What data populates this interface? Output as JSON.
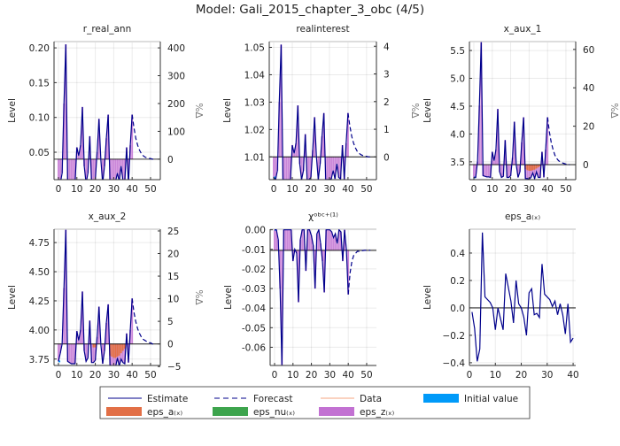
{
  "chart_data": {
    "type": "line",
    "title": "Model: Gali_2015_chapter_3_obc  (4/5)",
    "grid": true,
    "legend_placement": "bottom",
    "legend": [
      {
        "label": "Estimate",
        "kind": "line",
        "color": "#00008b"
      },
      {
        "label": "Forecast",
        "kind": "dash",
        "color": "#00008b"
      },
      {
        "label": "Data",
        "kind": "line",
        "color": "#f4a582"
      },
      {
        "label": "Initial value",
        "kind": "box",
        "color": "#009af9"
      },
      {
        "label": "eps_a₍ₓ₎",
        "kind": "box",
        "color": "#e26f46"
      },
      {
        "label": "eps_nu₍ₓ₎",
        "kind": "box",
        "color": "#3da44d"
      },
      {
        "label": "eps_z₍ₓ₎",
        "kind": "box",
        "color": "#c271d2"
      }
    ],
    "panels": [
      {
        "title": "r_real_ann",
        "ylabel": "Level",
        "y2label": "%Δ",
        "steady_state": 0.04,
        "ylim": [
          0.0106,
          0.209
        ],
        "xlim": [
          -2.4,
          55.3
        ],
        "xticks": [
          0,
          10,
          20,
          30,
          40,
          50
        ],
        "yticks": [
          0.05,
          0.1,
          0.15,
          0.2
        ],
        "ytick_labels": [
          "0.05",
          "0.10",
          "0.15",
          "0.20"
        ],
        "y2ticks": [
          0,
          100,
          200,
          300,
          400
        ],
        "estimate": [
          0.01,
          0.005,
          0.02,
          0.12,
          0.205,
          0.005,
          0.006,
          0.006,
          0.006,
          0.006,
          0.057,
          0.045,
          0.06,
          0.115,
          0.03,
          0.005,
          0.02,
          0.073,
          0.005,
          0.005,
          0.01,
          0.05,
          0.098,
          0.04,
          0.005,
          0.03,
          0.07,
          0.104,
          0.005,
          0.005,
          0.006,
          0.008,
          0.02,
          0.008,
          0.03,
          0.01,
          0.008,
          0.057,
          0.005,
          0.06,
          0.104
        ],
        "forecast": [
          0.104,
          0.085,
          0.07,
          0.06,
          0.053,
          0.048,
          0.045,
          0.043,
          0.042,
          0.041,
          0.041,
          0.04,
          0.04
        ],
        "eps_a": []
      },
      {
        "title": "realinterest",
        "ylabel": "Level",
        "y2label": "%Δ",
        "steady_state": 1.01,
        "ylim": [
          1.0017,
          1.0521
        ],
        "xlim": [
          -2.4,
          55.3
        ],
        "xticks": [
          0,
          10,
          20,
          30,
          40,
          50
        ],
        "yticks": [
          1.01,
          1.02,
          1.03,
          1.04,
          1.05
        ],
        "ytick_labels": [
          "1.01",
          "1.02",
          "1.03",
          "1.04",
          "1.05"
        ],
        "y2ticks": [
          0,
          1,
          2,
          3,
          4
        ],
        "estimate": [
          1.0025,
          1.0017,
          1.005,
          1.03,
          1.051,
          1.0017,
          1.0017,
          1.0017,
          1.0017,
          1.0017,
          1.0143,
          1.0113,
          1.015,
          1.0288,
          1.0075,
          1.0017,
          1.005,
          1.0183,
          1.0017,
          1.0017,
          1.0025,
          1.0125,
          1.0245,
          1.01,
          1.0017,
          1.0075,
          1.0175,
          1.026,
          1.0017,
          1.0017,
          1.0018,
          1.002,
          1.005,
          1.002,
          1.0075,
          1.0025,
          1.002,
          1.0143,
          1.0017,
          1.015,
          1.026
        ],
        "forecast": [
          1.026,
          1.0213,
          1.0175,
          1.015,
          1.0133,
          1.012,
          1.0113,
          1.0108,
          1.0105,
          1.0103,
          1.0102,
          1.01,
          1.01
        ],
        "eps_a": []
      },
      {
        "title": "x_aux_1",
        "ylabel": "Level",
        "y2label": "%Δ",
        "steady_state": 3.45,
        "ylim": [
          3.18,
          5.66
        ],
        "xlim": [
          -2.4,
          55.3
        ],
        "xticks": [
          0,
          10,
          20,
          30,
          40,
          50
        ],
        "yticks": [
          3.5,
          4.0,
          4.5,
          5.0,
          5.5
        ],
        "ytick_labels": [
          "3.5",
          "4.0",
          "4.5",
          "5.0",
          "5.5"
        ],
        "y2ticks": [
          0,
          20,
          40,
          60
        ],
        "estimate": [
          3.22,
          3.22,
          3.5,
          4.51,
          5.65,
          3.25,
          3.24,
          3.23,
          3.23,
          3.22,
          3.68,
          3.52,
          3.72,
          4.45,
          3.32,
          3.22,
          3.24,
          3.89,
          3.22,
          3.22,
          3.25,
          3.58,
          4.22,
          3.45,
          3.22,
          3.32,
          3.85,
          4.3,
          3.2,
          3.2,
          3.19,
          3.22,
          3.3,
          3.2,
          3.32,
          3.22,
          3.22,
          3.68,
          3.22,
          3.72,
          4.3
        ],
        "forecast": [
          4.3,
          4.04,
          3.85,
          3.72,
          3.62,
          3.56,
          3.52,
          3.5,
          3.48,
          3.47,
          3.46,
          3.45,
          3.45
        ],
        "eps_a": [
          [
            28,
            -0.08
          ],
          [
            29,
            -0.1
          ],
          [
            30,
            -0.11
          ],
          [
            31,
            -0.11
          ],
          [
            32,
            -0.1
          ],
          [
            33,
            -0.09
          ],
          [
            34,
            -0.07
          ],
          [
            35,
            -0.05
          ],
          [
            36,
            -0.03
          ]
        ]
      },
      {
        "title": "x_aux_2",
        "ylabel": "Level",
        "y2label": "%Δ",
        "steady_state": 3.88,
        "ylim": [
          3.695,
          4.865
        ],
        "xlim": [
          -2.4,
          55.3
        ],
        "xticks": [
          0,
          10,
          20,
          30,
          40,
          50
        ],
        "yticks": [
          3.75,
          4.0,
          4.25,
          4.5,
          4.75
        ],
        "ytick_labels": [
          "3.75",
          "4.00",
          "4.25",
          "4.50",
          "4.75"
        ],
        "y2ticks": [
          -5,
          0,
          5,
          10,
          15,
          20,
          25
        ],
        "y2tick_labels": [
          "−5",
          "0",
          "5",
          "10",
          "15",
          "20",
          "25"
        ],
        "estimate": [
          3.73,
          3.8,
          3.88,
          4.36,
          4.86,
          3.73,
          3.72,
          3.71,
          3.71,
          3.71,
          3.99,
          3.91,
          4.0,
          4.33,
          3.82,
          3.73,
          3.76,
          4.08,
          3.72,
          3.72,
          3.74,
          3.94,
          4.2,
          3.88,
          3.71,
          3.82,
          4.06,
          4.22,
          3.7,
          3.69,
          3.69,
          3.68,
          3.76,
          3.69,
          3.75,
          3.72,
          3.71,
          3.97,
          3.72,
          4.0,
          4.27
        ],
        "forecast": [
          4.27,
          4.15,
          4.07,
          4.01,
          3.97,
          3.94,
          3.92,
          3.91,
          3.9,
          3.89,
          3.89,
          3.88,
          3.88
        ],
        "eps_a": [
          [
            19,
            -0.03
          ],
          [
            20,
            -0.03
          ],
          [
            28,
            -0.1
          ],
          [
            29,
            -0.11
          ],
          [
            30,
            -0.12
          ],
          [
            31,
            -0.12
          ],
          [
            32,
            -0.11
          ],
          [
            33,
            -0.1
          ],
          [
            34,
            -0.08
          ],
          [
            35,
            -0.06
          ],
          [
            36,
            -0.04
          ]
        ]
      },
      {
        "title": "χᵒᵇᶜ⁺⁽¹⁾",
        "ylabel": "Level",
        "y2label": "",
        "steady_state": -0.0105,
        "ylim": [
          -0.0693,
          0.0003
        ],
        "xlim": [
          -2.4,
          55.3
        ],
        "xticks": [
          0,
          10,
          20,
          30,
          40,
          50
        ],
        "yticks": [
          -0.06,
          -0.05,
          -0.04,
          -0.03,
          -0.02,
          -0.01,
          0.0
        ],
        "ytick_labels": [
          "-0.06",
          "-0.05",
          "-0.04",
          "-0.03",
          "-0.02",
          "-0.01",
          "0.00"
        ],
        "y2ticks": [],
        "estimate": [
          0,
          0,
          -0.005,
          -0.03,
          -0.069,
          0,
          0,
          0,
          0,
          0,
          -0.016,
          -0.01,
          -0.012,
          -0.037,
          -0.005,
          0,
          0,
          -0.021,
          0,
          0,
          -0.003,
          -0.008,
          -0.03,
          -0.002,
          0,
          -0.007,
          -0.016,
          -0.032,
          0,
          0,
          0,
          -0.001,
          -0.004,
          -0.002,
          -0.007,
          0,
          -0.001,
          -0.016,
          0,
          -0.01,
          -0.033
        ],
        "forecast": [
          -0.033,
          -0.022,
          -0.016,
          -0.013,
          -0.012,
          -0.011,
          -0.011,
          -0.0108,
          -0.0106,
          -0.0105,
          -0.0105,
          -0.0105,
          -0.0105
        ],
        "eps_a": []
      },
      {
        "title": "eps_a₍ₓ₎",
        "ylabel": "Level",
        "y2label": "",
        "steady_state": 0,
        "ylim": [
          -0.42,
          0.574
        ],
        "xlim": [
          0,
          41
        ],
        "xticks": [
          0,
          10,
          20,
          30,
          40
        ],
        "yticks": [
          -0.4,
          -0.2,
          0.0,
          0.2,
          0.4
        ],
        "ytick_labels": [
          "−0.4",
          "−0.2",
          "0.0",
          "0.2",
          "0.4"
        ],
        "y2ticks": [],
        "x_start": 1,
        "estimate": [
          -0.03,
          -0.15,
          -0.39,
          -0.3,
          0.55,
          0.08,
          0.06,
          0.04,
          0.0,
          -0.16,
          0.0,
          -0.08,
          -0.16,
          0.25,
          0.15,
          0.05,
          -0.11,
          0.2,
          0.03,
          0.0,
          -0.07,
          -0.2,
          0.11,
          0.14,
          -0.05,
          -0.04,
          -0.07,
          0.32,
          0.1,
          0.08,
          0.06,
          0.01,
          0.05,
          -0.05,
          0.03,
          -0.05,
          -0.19,
          0.03,
          -0.25,
          -0.22
        ],
        "forecast": [],
        "eps_a": [],
        "no_decomposition": true
      }
    ]
  }
}
